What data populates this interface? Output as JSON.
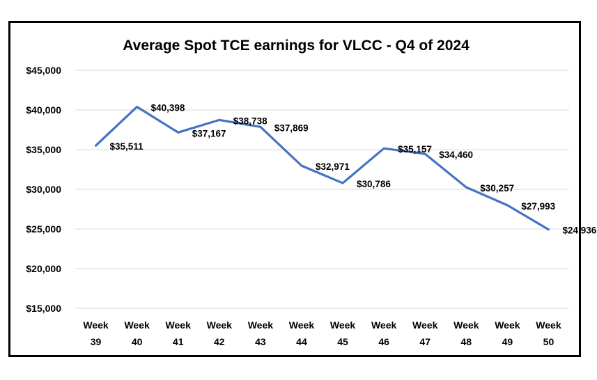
{
  "chart_data": {
    "type": "line",
    "title": "Average Spot TCE earnings for VLCC - Q4 of 2024",
    "xlabel": "",
    "ylabel": "",
    "ylim": [
      15000,
      45000
    ],
    "y_ticks": [
      "$15,000",
      "$20,000",
      "$25,000",
      "$30,000",
      "$35,000",
      "$40,000",
      "$45,000"
    ],
    "categories": [
      [
        "Week",
        "39"
      ],
      [
        "Week",
        "40"
      ],
      [
        "Week",
        "41"
      ],
      [
        "Week",
        "42"
      ],
      [
        "Week",
        "43"
      ],
      [
        "Week",
        "44"
      ],
      [
        "Week",
        "45"
      ],
      [
        "Week",
        "46"
      ],
      [
        "Week",
        "47"
      ],
      [
        "Week",
        "48"
      ],
      [
        "Week",
        "49"
      ],
      [
        "Week",
        "50"
      ]
    ],
    "series": [
      {
        "name": "Average Spot TCE earnings",
        "color": "#4472c4",
        "values": [
          35511,
          40398,
          37167,
          38738,
          37869,
          32971,
          30786,
          35157,
          34460,
          30257,
          27993,
          24936
        ],
        "labels": [
          "$35,511",
          "$40,398",
          "$37,167",
          "$38,738",
          "$37,869",
          "$32,971",
          "$30,786",
          "$35,157",
          "$34,460",
          "$30,257",
          "$27,993",
          "$24,936"
        ]
      }
    ],
    "grid": true,
    "legend": "none"
  }
}
